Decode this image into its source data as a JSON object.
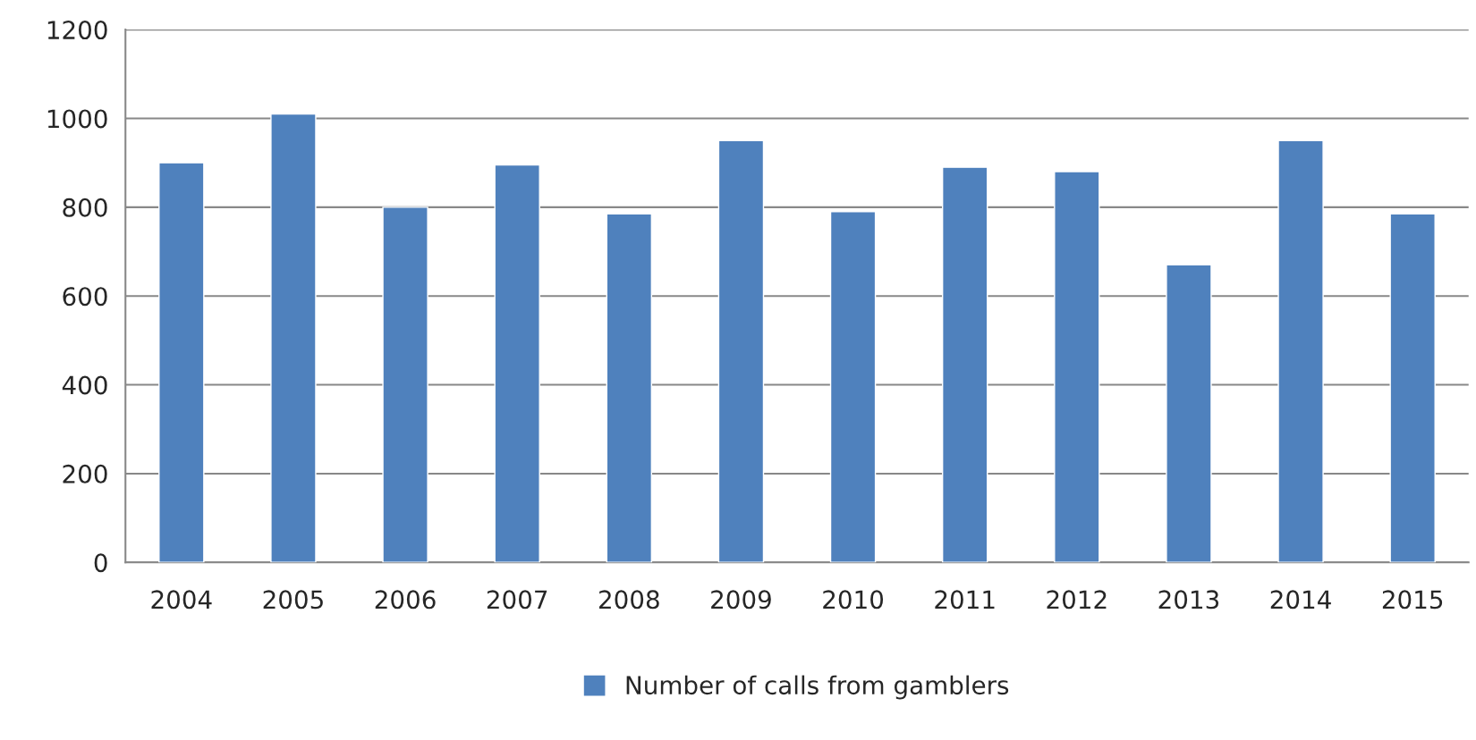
{
  "chart_data": {
    "type": "bar",
    "categories": [
      "2004",
      "2005",
      "2006",
      "2007",
      "2008",
      "2009",
      "2010",
      "2011",
      "2012",
      "2013",
      "2014",
      "2015"
    ],
    "series": [
      {
        "name": "Number of calls from gamblers",
        "color": "#4f81bd",
        "values": [
          900,
          1010,
          800,
          895,
          785,
          950,
          790,
          890,
          880,
          670,
          950,
          785
        ]
      }
    ],
    "ylim": [
      0,
      1200
    ],
    "yticks": [
      0,
      200,
      400,
      600,
      800,
      1000,
      1200
    ],
    "grid": "y",
    "legend": "bottom"
  }
}
